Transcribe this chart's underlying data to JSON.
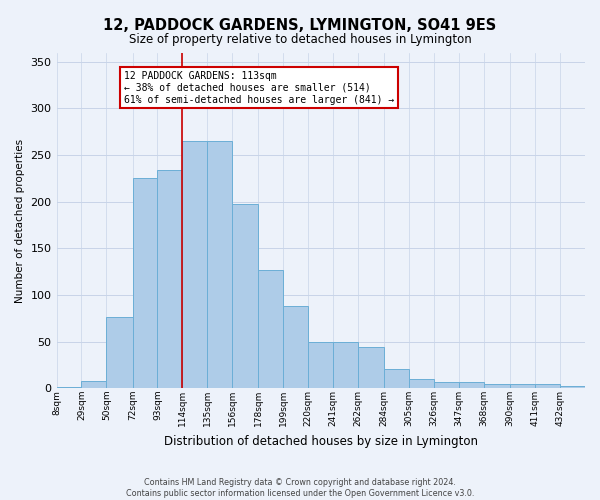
{
  "title": "12, PADDOCK GARDENS, LYMINGTON, SO41 9ES",
  "subtitle": "Size of property relative to detached houses in Lymington",
  "xlabel": "Distribution of detached houses by size in Lymington",
  "ylabel": "Number of detached properties",
  "categories": [
    "8sqm",
    "29sqm",
    "50sqm",
    "72sqm",
    "93sqm",
    "114sqm",
    "135sqm",
    "156sqm",
    "178sqm",
    "199sqm",
    "220sqm",
    "241sqm",
    "262sqm",
    "284sqm",
    "305sqm",
    "326sqm",
    "347sqm",
    "368sqm",
    "390sqm",
    "411sqm",
    "432sqm"
  ],
  "values": [
    2,
    8,
    77,
    225,
    234,
    265,
    265,
    198,
    127,
    88,
    50,
    50,
    44,
    21,
    10,
    7,
    7,
    5,
    5,
    5,
    3
  ],
  "bar_color": "#aecce8",
  "bar_edge_color": "#6baed6",
  "grid_color": "#c8d4e8",
  "background_color": "#edf2fa",
  "property_line_x": 114,
  "annotation_text": "12 PADDOCK GARDENS: 113sqm\n← 38% of detached houses are smaller (514)\n61% of semi-detached houses are larger (841) →",
  "annotation_box_facecolor": "#ffffff",
  "annotation_border_color": "#cc0000",
  "footnote": "Contains HM Land Registry data © Crown copyright and database right 2024.\nContains public sector information licensed under the Open Government Licence v3.0.",
  "ylim": [
    0,
    360
  ],
  "yticks": [
    0,
    50,
    100,
    150,
    200,
    250,
    300,
    350
  ],
  "bin_edges": [
    8,
    29,
    50,
    72,
    93,
    114,
    135,
    156,
    178,
    199,
    220,
    241,
    262,
    284,
    305,
    326,
    347,
    368,
    390,
    411,
    432,
    453
  ]
}
